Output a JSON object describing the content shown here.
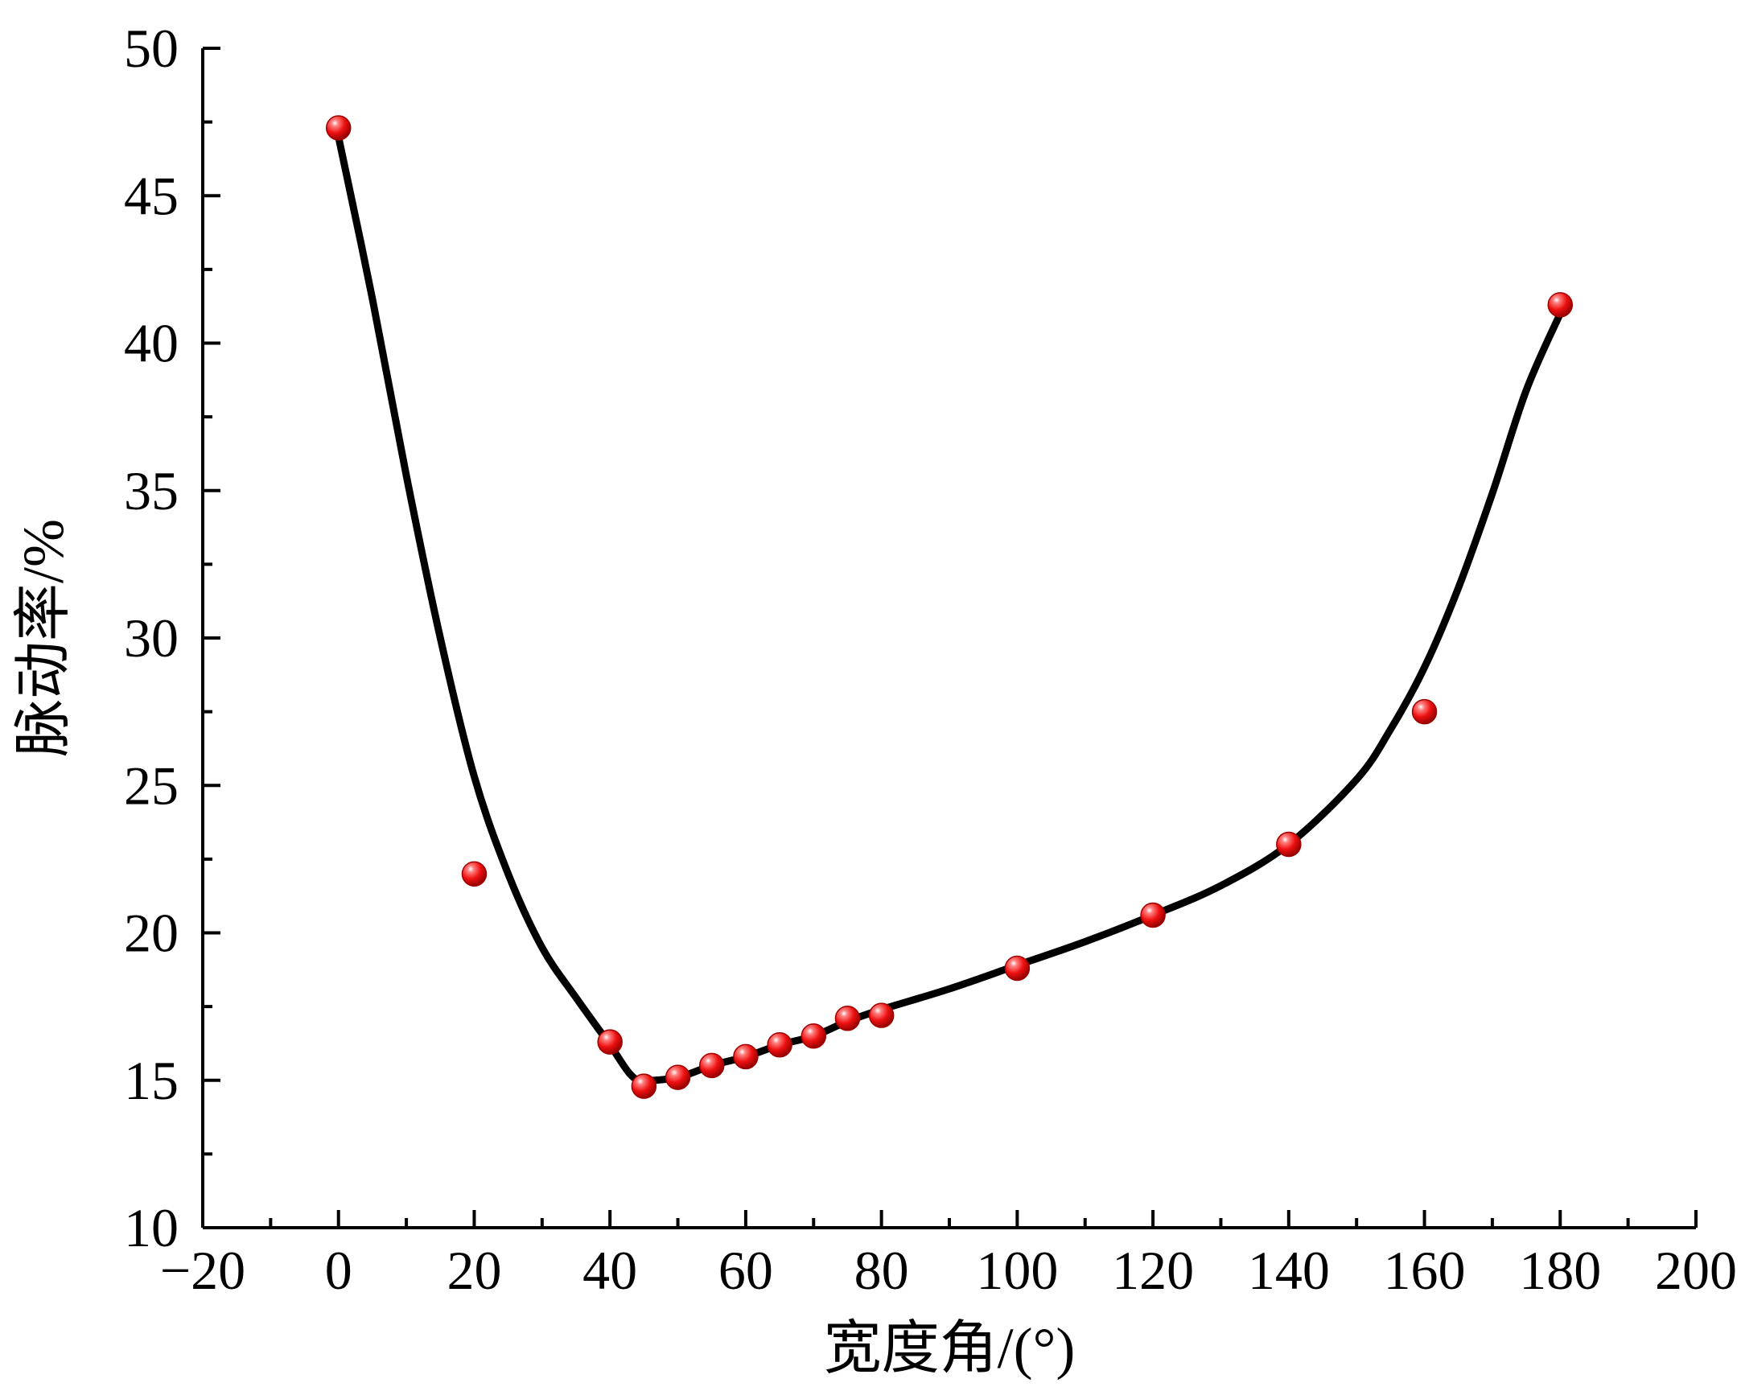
{
  "chart_data": {
    "type": "scatter",
    "title": "",
    "xlabel": "宽度角/(°)",
    "ylabel": "脉动率/%",
    "xlim": [
      -20,
      200
    ],
    "ylim": [
      10,
      50
    ],
    "xticks": [
      -20,
      0,
      20,
      40,
      60,
      80,
      100,
      120,
      140,
      160,
      180,
      200
    ],
    "xtick_labels": [
      "−20",
      "0",
      "20",
      "40",
      "60",
      "80",
      "100",
      "120",
      "140",
      "160",
      "180",
      "200"
    ],
    "yticks": [
      10,
      15,
      20,
      25,
      30,
      35,
      40,
      45,
      50
    ],
    "ytick_labels": [
      "10",
      "15",
      "20",
      "25",
      "30",
      "35",
      "40",
      "45",
      "50"
    ],
    "grid": false,
    "legend": false,
    "series": [
      {
        "kind": "points",
        "color": "#e81010",
        "x": [
          0,
          20,
          40,
          45,
          50,
          55,
          60,
          65,
          70,
          75,
          80,
          100,
          120,
          140,
          160,
          180
        ],
        "y": [
          47.3,
          22.0,
          16.3,
          14.8,
          15.1,
          15.5,
          15.8,
          16.2,
          16.5,
          17.1,
          17.2,
          18.8,
          20.6,
          23.0,
          27.5,
          41.3
        ]
      },
      {
        "kind": "fit-curve",
        "color": "#000000",
        "x": [
          0,
          5,
          10,
          15,
          20,
          25,
          30,
          35,
          40,
          43,
          45,
          50,
          55,
          60,
          65,
          70,
          75,
          80,
          90,
          100,
          110,
          120,
          130,
          140,
          150,
          155,
          160,
          165,
          170,
          175,
          180
        ],
        "y": [
          47.0,
          41.5,
          35.5,
          30.0,
          25.3,
          22.0,
          19.5,
          17.8,
          16.2,
          15.2,
          15.0,
          15.1,
          15.5,
          15.8,
          16.2,
          16.5,
          17.0,
          17.4,
          18.1,
          18.9,
          19.7,
          20.6,
          21.6,
          23.0,
          25.2,
          26.9,
          29.0,
          31.7,
          34.9,
          38.4,
          41.0
        ]
      }
    ]
  }
}
